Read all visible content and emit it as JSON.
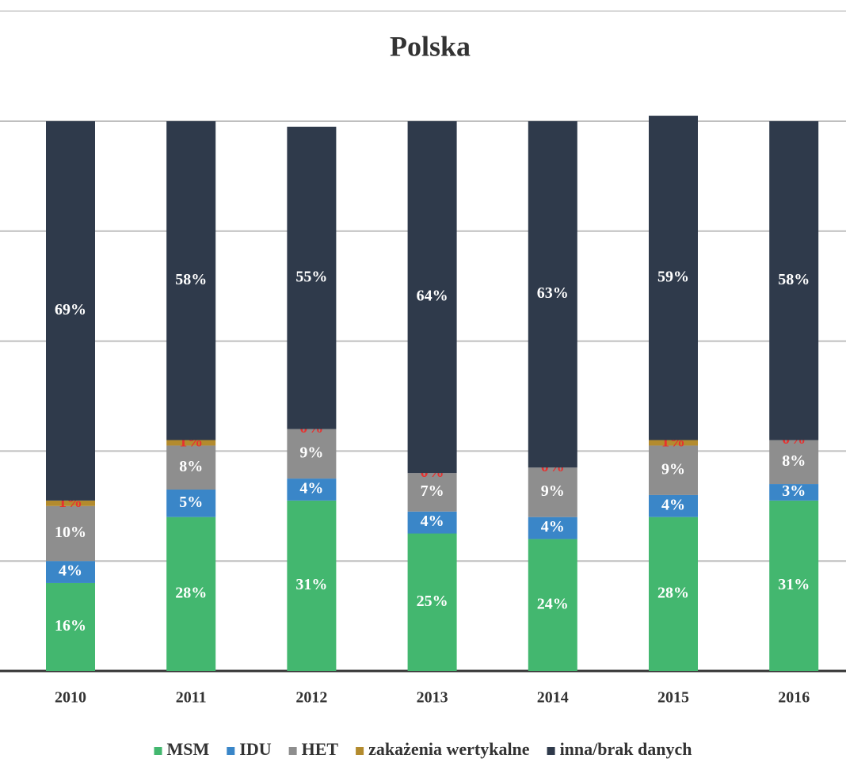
{
  "chart_data": {
    "type": "stacked_bar",
    "title": "Polska",
    "categories": [
      "2010",
      "2011",
      "2012",
      "2013",
      "2014",
      "2015",
      "2016"
    ],
    "series": [
      {
        "name": "MSM",
        "color": "#43b76f",
        "label_color": "#ffffff",
        "values": [
          16,
          28,
          31,
          25,
          24,
          28,
          31
        ]
      },
      {
        "name": "IDU",
        "color": "#3a86c8",
        "label_color": "#ffffff",
        "values": [
          4,
          5,
          4,
          4,
          4,
          4,
          3
        ]
      },
      {
        "name": "HET",
        "color": "#8e8e8e",
        "label_color": "#ffffff",
        "values": [
          10,
          8,
          9,
          7,
          9,
          9,
          8
        ]
      },
      {
        "name": "zakażenia wertykalne",
        "color": "#b38b2e",
        "label_color": "#e8312f",
        "values": [
          1,
          1,
          0,
          0,
          0,
          1,
          0
        ]
      },
      {
        "name": "inna/brak danych",
        "color": "#2f3a4b",
        "label_color": "#ffffff",
        "values": [
          69,
          58,
          55,
          64,
          63,
          59,
          58
        ]
      }
    ],
    "ylim": [
      0,
      100
    ],
    "yticks": [
      0,
      20,
      40,
      60,
      80,
      100
    ],
    "grid": true,
    "legend": "bottom"
  }
}
